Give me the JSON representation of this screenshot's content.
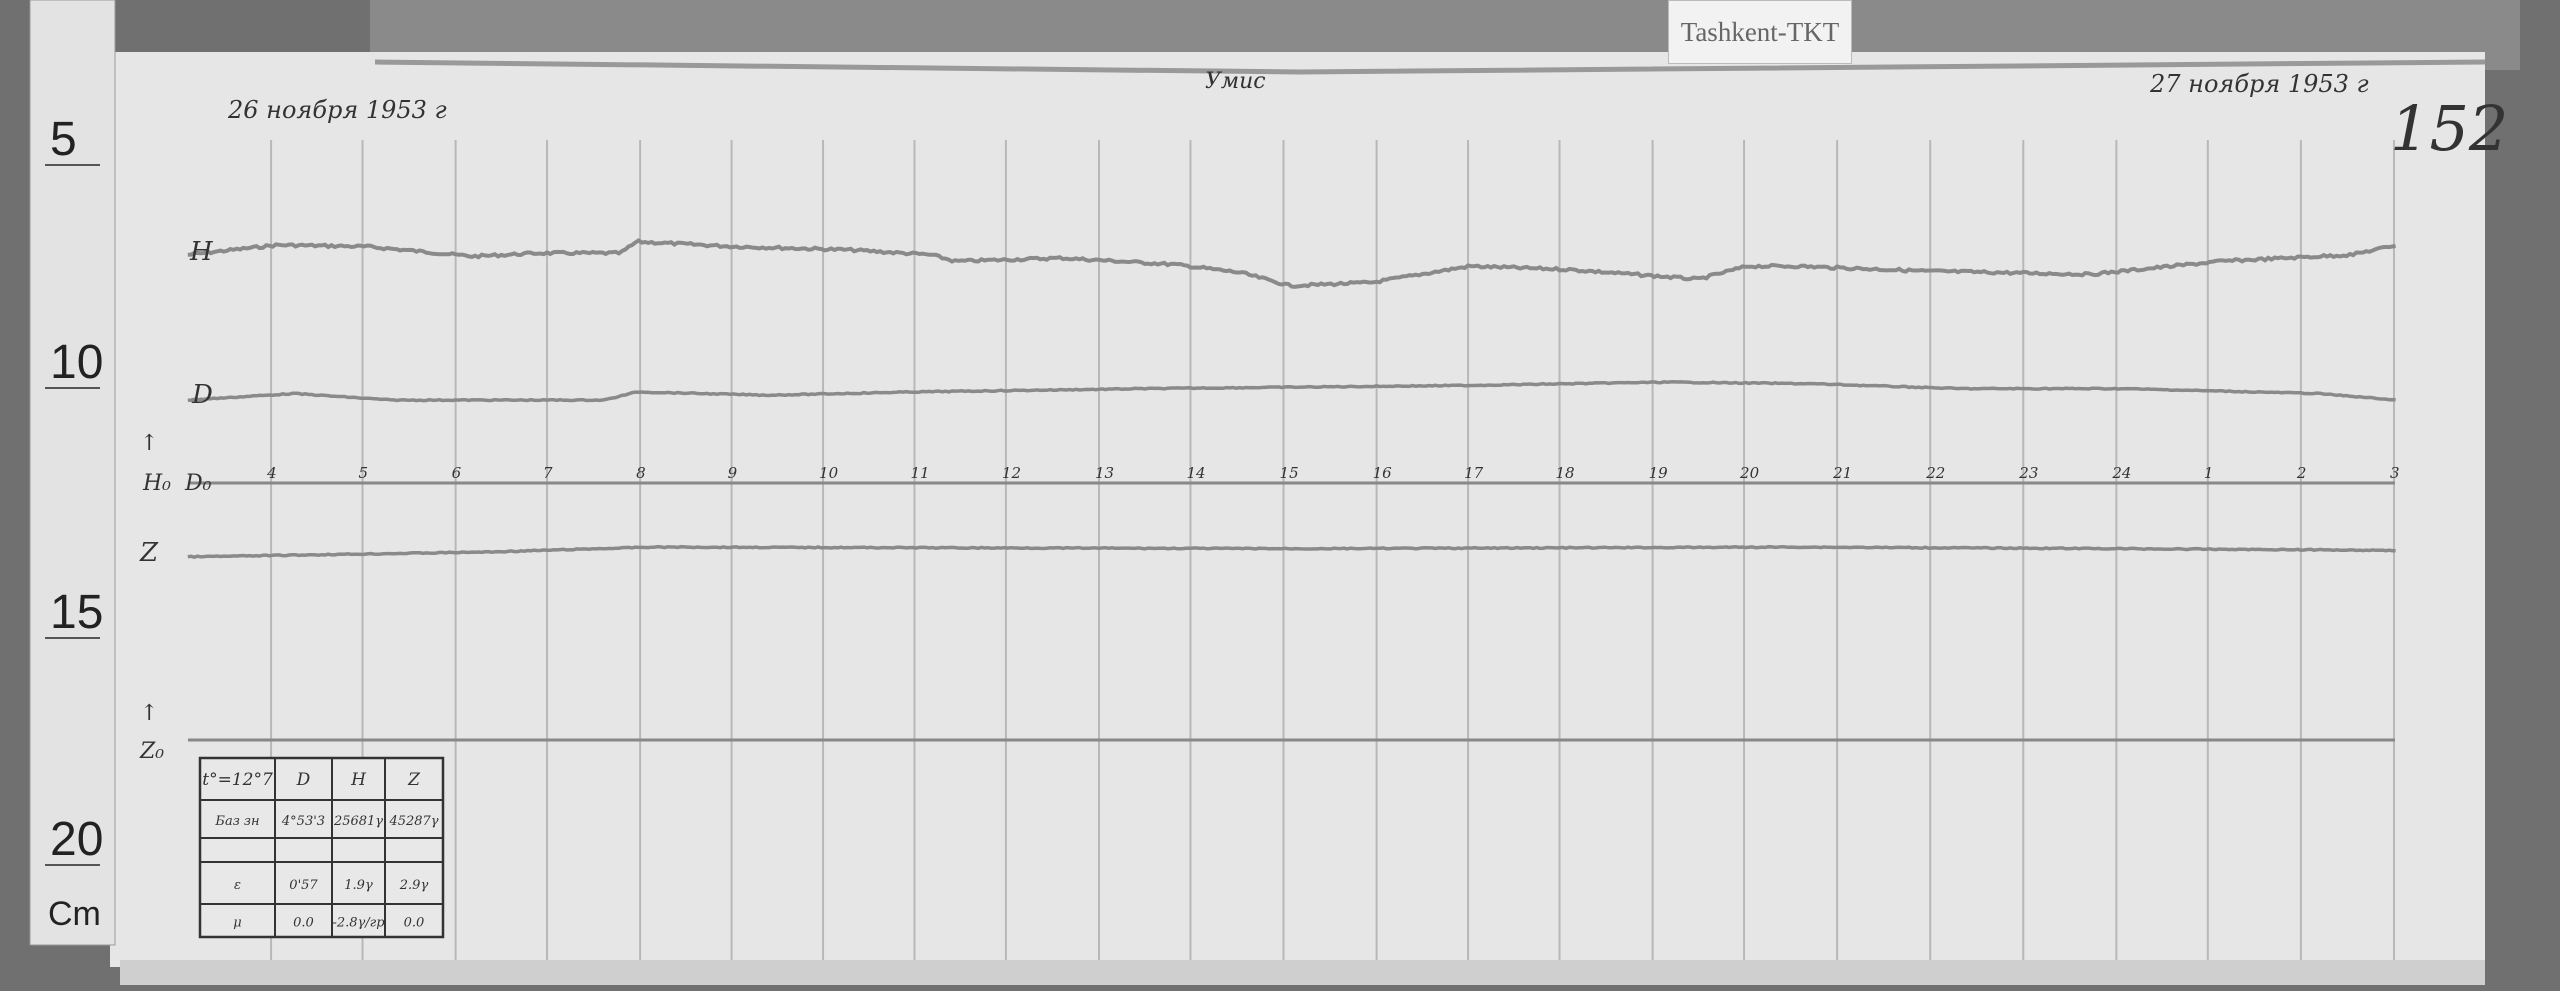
{
  "station_label": "Tashkent-TKT",
  "sheet_number": "152",
  "date_start": "26 ноября 1953 г",
  "date_end": "27 ноября 1953 г",
  "header_note": "Умис",
  "trace_labels": {
    "H": "H",
    "D": "D",
    "D0": "D₀",
    "Z": "Z",
    "Z0": "Z₀",
    "H0": "H₀"
  },
  "hour_ticks": [
    "4",
    "5",
    "6",
    "7",
    "8",
    "9",
    "10",
    "11",
    "12",
    "13",
    "14",
    "15",
    "16",
    "17",
    "18",
    "19",
    "20",
    "21",
    "22",
    "23",
    "24",
    "1",
    "2",
    "3"
  ],
  "ruler": {
    "marks": [
      "5",
      "10",
      "15",
      "20"
    ],
    "unit": "Cm"
  },
  "table": {
    "header": [
      "t°=12°7",
      "D",
      "H",
      "Z"
    ],
    "rows": [
      [
        "Баз зн",
        "4°53'3",
        "25681γ",
        "45287γ"
      ],
      [
        "",
        "",
        "",
        ""
      ],
      [
        "ε",
        "0'57",
        "1.9γ",
        "2.9γ"
      ],
      [
        "μ",
        "0.0",
        "-2.8γ/гр",
        "0.0"
      ]
    ]
  }
}
